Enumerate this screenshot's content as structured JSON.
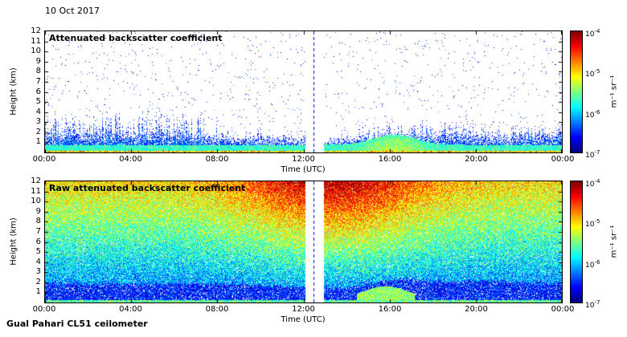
{
  "figure": {
    "date": "10 Oct 2017",
    "footer": "Gual Pahari CL51 ceilometer",
    "background": "#ffffff"
  },
  "chart_data": [
    {
      "type": "heatmap",
      "title": "Attenuated backscatter coefficient",
      "xlabel": "Time (UTC)",
      "ylabel": "Height (km)",
      "x_ticks": [
        "00:00",
        "04:00",
        "08:00",
        "12:00",
        "16:00",
        "20:00",
        "00:00"
      ],
      "y_ticks": [
        1,
        2,
        3,
        4,
        5,
        6,
        7,
        8,
        9,
        10,
        11,
        12
      ],
      "x_range_hours": [
        0,
        24
      ],
      "y_range_km": [
        0,
        12
      ],
      "colorbar": {
        "unit": "m⁻¹ sr⁻¹",
        "scale": "log",
        "colormap": "jet",
        "tick_exponents": [
          -4,
          -5,
          -6,
          -7
        ],
        "range_min": "1e-7",
        "range_max": "1e-4"
      },
      "visible_features": {
        "aerosol_layer": "green/yellow layer below ~1 km, blue speckle to ~2 km",
        "spiky_tops": "spikes up to ~3-4 km before 08:00 and after 17:00",
        "clear_air": "white (no signal) above the boundary layer",
        "data_gap_utc": "about 12:05-12:55 with vertical blue dashed marker",
        "green_plume_utc": "about 15:00-17:30 up to ~2 km"
      }
    },
    {
      "type": "heatmap",
      "title": "Raw attenuated backscatter coefficient",
      "xlabel": "Time (UTC)",
      "ylabel": "Height (km)",
      "x_ticks": [
        "00:00",
        "04:00",
        "08:00",
        "12:00",
        "16:00",
        "20:00",
        "00:00"
      ],
      "y_ticks": [
        1,
        2,
        3,
        4,
        5,
        6,
        7,
        8,
        9,
        10,
        11,
        12
      ],
      "x_range_hours": [
        0,
        24
      ],
      "y_range_km": [
        0,
        12
      ],
      "colorbar": {
        "unit": "m⁻¹ sr⁻¹",
        "scale": "log",
        "colormap": "jet",
        "tick_exponents": [
          -4,
          -5,
          -6,
          -7
        ],
        "range_min": "1e-7",
        "range_max": "1e-4"
      },
      "visible_features": {
        "noise": "full-field rainbow speckle noise at all heights",
        "daytime_noise_enhancement": "red/orange noise 5-12 km between ~09:00 and ~18:00",
        "boundary_layer": "dark blue aerosol layer below ~1.5-2.2 km with cyan/green surface line",
        "green_plume_utc": "about 15:00-17:30 up to ~2 km",
        "data_gap_utc": "about 12:05-12:55 with vertical blue dashed marker"
      }
    }
  ]
}
